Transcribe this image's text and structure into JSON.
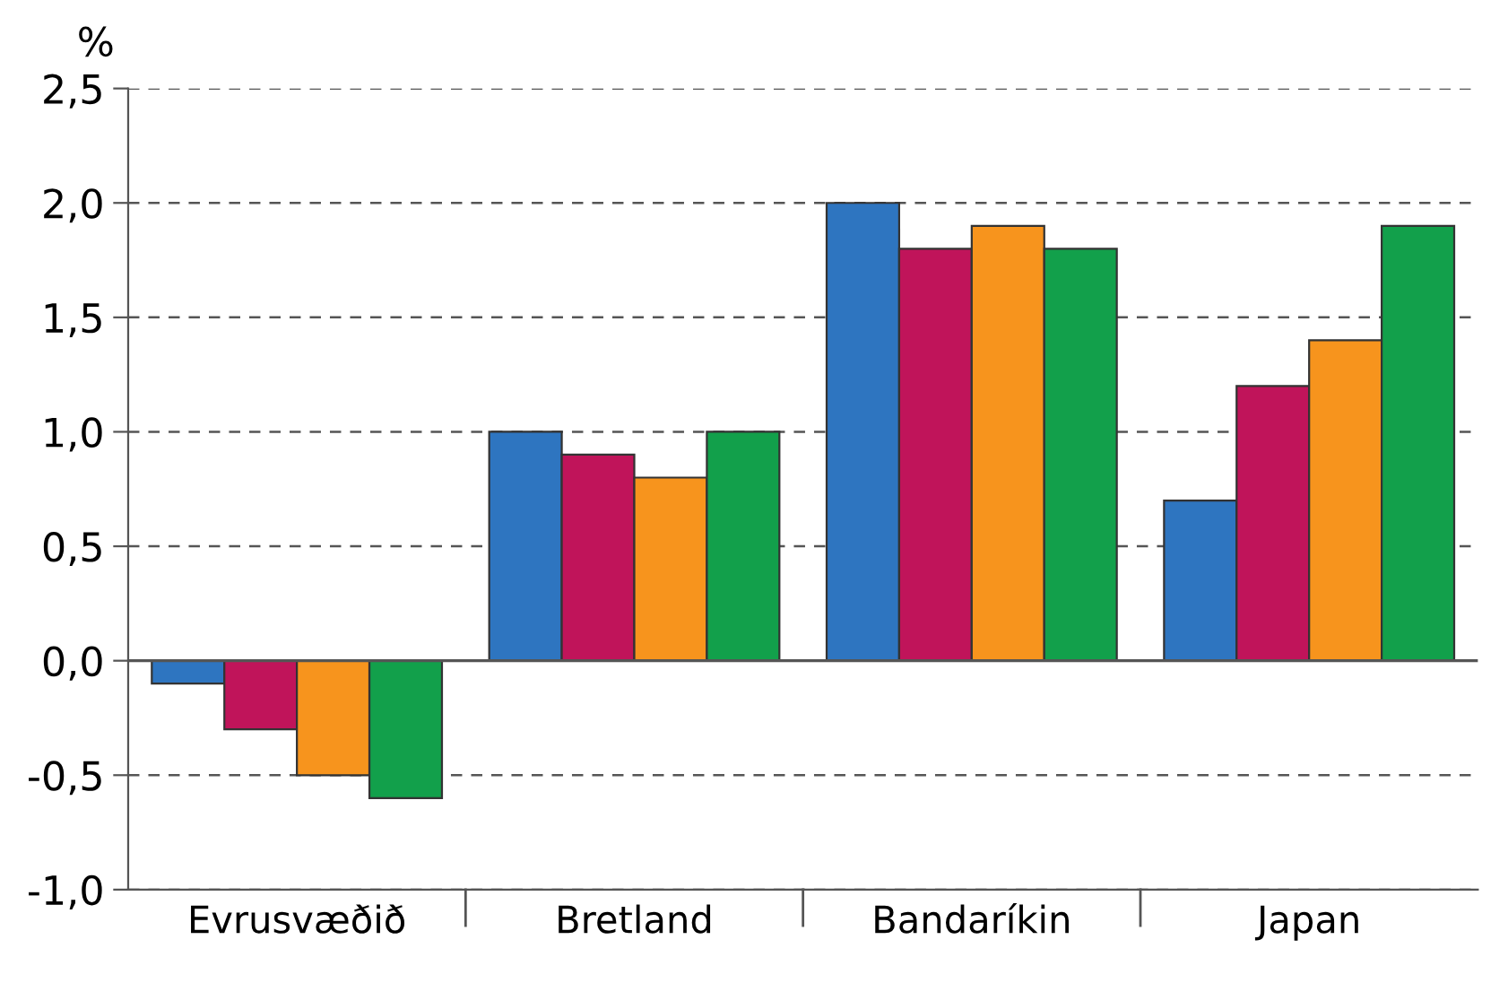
{
  "chart_data": {
    "type": "bar",
    "ylabel": "%",
    "categories": [
      "Evrusvæðið",
      "Bretland",
      "Bandaríkin",
      "Japan"
    ],
    "series": [
      {
        "color": "#2e75c0",
        "values": [
          -0.1,
          1.0,
          2.0,
          0.7
        ]
      },
      {
        "color": "#c0145a",
        "values": [
          -0.3,
          0.9,
          1.8,
          1.2
        ]
      },
      {
        "color": "#f7941d",
        "values": [
          -0.5,
          0.8,
          1.9,
          1.4
        ]
      },
      {
        "color": "#12a04b",
        "values": [
          -0.6,
          1.0,
          1.8,
          1.9
        ]
      }
    ],
    "ylim": [
      -1.0,
      2.5
    ],
    "yticks": [
      {
        "value": -1.0,
        "label": "-1,0"
      },
      {
        "value": -0.5,
        "label": "-0,5"
      },
      {
        "value": 0.0,
        "label": "0,0"
      },
      {
        "value": 0.5,
        "label": "0,5"
      },
      {
        "value": 1.0,
        "label": "1,0"
      },
      {
        "value": 1.5,
        "label": "1,5"
      },
      {
        "value": 2.0,
        "label": "2,0"
      },
      {
        "value": 2.5,
        "label": "2,5"
      }
    ],
    "ref_lines": [
      {
        "axis": "y",
        "value": 0.0,
        "color": "#555555"
      }
    ],
    "grid": "y"
  }
}
